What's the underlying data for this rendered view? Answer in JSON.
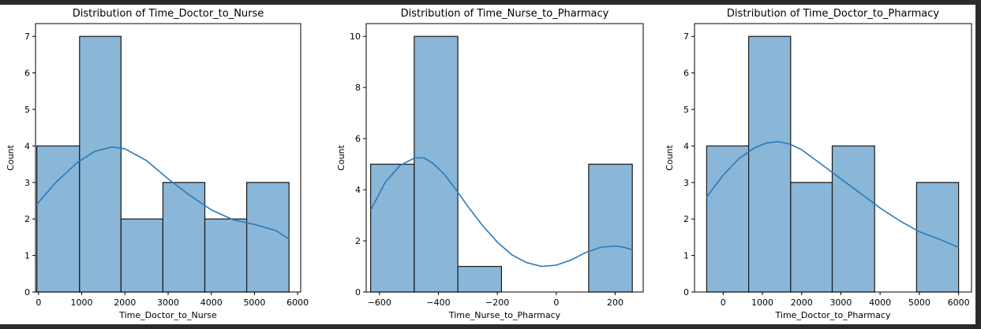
{
  "chart_data": [
    {
      "type": "bar",
      "subtype": "histogram-with-kde",
      "title": "Distribution of Time_Doctor_to_Nurse",
      "xlabel": "Time_Doctor_to_Nurse",
      "ylabel": "Count",
      "xlim": [
        -70,
        6070
      ],
      "ylim": [
        0,
        7.35
      ],
      "xticks": [
        0,
        1000,
        2000,
        3000,
        4000,
        5000,
        6000
      ],
      "yticks": [
        0,
        1,
        2,
        3,
        4,
        5,
        6,
        7
      ],
      "bins": [
        {
          "x0": -40,
          "x1": 950,
          "count": 4
        },
        {
          "x0": 950,
          "x1": 1910,
          "count": 7
        },
        {
          "x0": 1910,
          "x1": 2880,
          "count": 2
        },
        {
          "x0": 2880,
          "x1": 3850,
          "count": 3
        },
        {
          "x0": 3850,
          "x1": 4820,
          "count": 2
        },
        {
          "x0": 4820,
          "x1": 5800,
          "count": 3
        }
      ],
      "kde": {
        "x": [
          -40,
          400,
          900,
          1300,
          1700,
          2000,
          2500,
          3000,
          3500,
          4000,
          4500,
          5000,
          5500,
          5800
        ],
        "y": [
          2.4,
          3.0,
          3.55,
          3.85,
          3.97,
          3.92,
          3.6,
          3.1,
          2.65,
          2.25,
          1.98,
          1.85,
          1.68,
          1.45
        ]
      },
      "grid": false,
      "legend": "none"
    },
    {
      "type": "bar",
      "subtype": "histogram-with-kde",
      "title": "Distribution of Time_Nurse_to_Pharmacy",
      "xlabel": "Time_Nurse_to_Pharmacy",
      "ylabel": "Count",
      "xlim": [
        -645,
        295
      ],
      "ylim": [
        0,
        10.5
      ],
      "xticks": [
        -600,
        -400,
        -200,
        0,
        200
      ],
      "yticks": [
        0,
        2,
        4,
        6,
        8,
        10
      ],
      "bins": [
        {
          "x0": -630,
          "x1": -482,
          "count": 5
        },
        {
          "x0": -482,
          "x1": -334,
          "count": 10
        },
        {
          "x0": -334,
          "x1": -186,
          "count": 1
        },
        {
          "x0": -186,
          "x1": -38,
          "count": 0
        },
        {
          "x0": -38,
          "x1": 110,
          "count": 0
        },
        {
          "x0": 110,
          "x1": 258,
          "count": 5
        }
      ],
      "kde": {
        "x": [
          -630,
          -580,
          -530,
          -480,
          -450,
          -420,
          -380,
          -340,
          -300,
          -250,
          -200,
          -150,
          -100,
          -50,
          0,
          50,
          100,
          150,
          200,
          230,
          258
        ],
        "y": [
          3.2,
          4.3,
          4.95,
          5.25,
          5.25,
          5.05,
          4.6,
          4.0,
          3.35,
          2.6,
          1.95,
          1.45,
          1.15,
          1.0,
          1.05,
          1.25,
          1.55,
          1.75,
          1.8,
          1.75,
          1.65
        ]
      },
      "grid": false,
      "legend": "none"
    },
    {
      "type": "bar",
      "subtype": "histogram-with-kde",
      "title": "Distribution of Time_Doctor_to_Pharmacy",
      "xlabel": "Time_Doctor_to_Pharmacy",
      "ylabel": "Count",
      "xlim": [
        -730,
        6330
      ],
      "ylim": [
        0,
        7.35
      ],
      "xticks": [
        0,
        1000,
        2000,
        3000,
        4000,
        5000,
        6000
      ],
      "yticks": [
        0,
        1,
        2,
        3,
        4,
        5,
        6,
        7
      ],
      "bins": [
        {
          "x0": -420,
          "x1": 650,
          "count": 4
        },
        {
          "x0": 650,
          "x1": 1720,
          "count": 7
        },
        {
          "x0": 1720,
          "x1": 2780,
          "count": 3
        },
        {
          "x0": 2780,
          "x1": 3860,
          "count": 4
        },
        {
          "x0": 3860,
          "x1": 4930,
          "count": 0
        },
        {
          "x0": 4930,
          "x1": 6000,
          "count": 3
        }
      ],
      "kde": {
        "x": [
          -420,
          0,
          400,
          800,
          1100,
          1400,
          1700,
          2000,
          2500,
          3000,
          3500,
          4000,
          4500,
          5000,
          5500,
          6000
        ],
        "y": [
          2.6,
          3.2,
          3.65,
          3.95,
          4.08,
          4.12,
          4.05,
          3.9,
          3.5,
          3.1,
          2.7,
          2.3,
          1.95,
          1.65,
          1.45,
          1.22
        ]
      },
      "grid": false,
      "legend": "none"
    }
  ],
  "colors": {
    "bar_fill": "#8ab6d8",
    "bar_edge": "#1a1a1a",
    "kde_line": "#2a7ab9",
    "axis": "#000000",
    "figure_bg": "#ffffff",
    "window_bg": "#2b2b2b"
  }
}
